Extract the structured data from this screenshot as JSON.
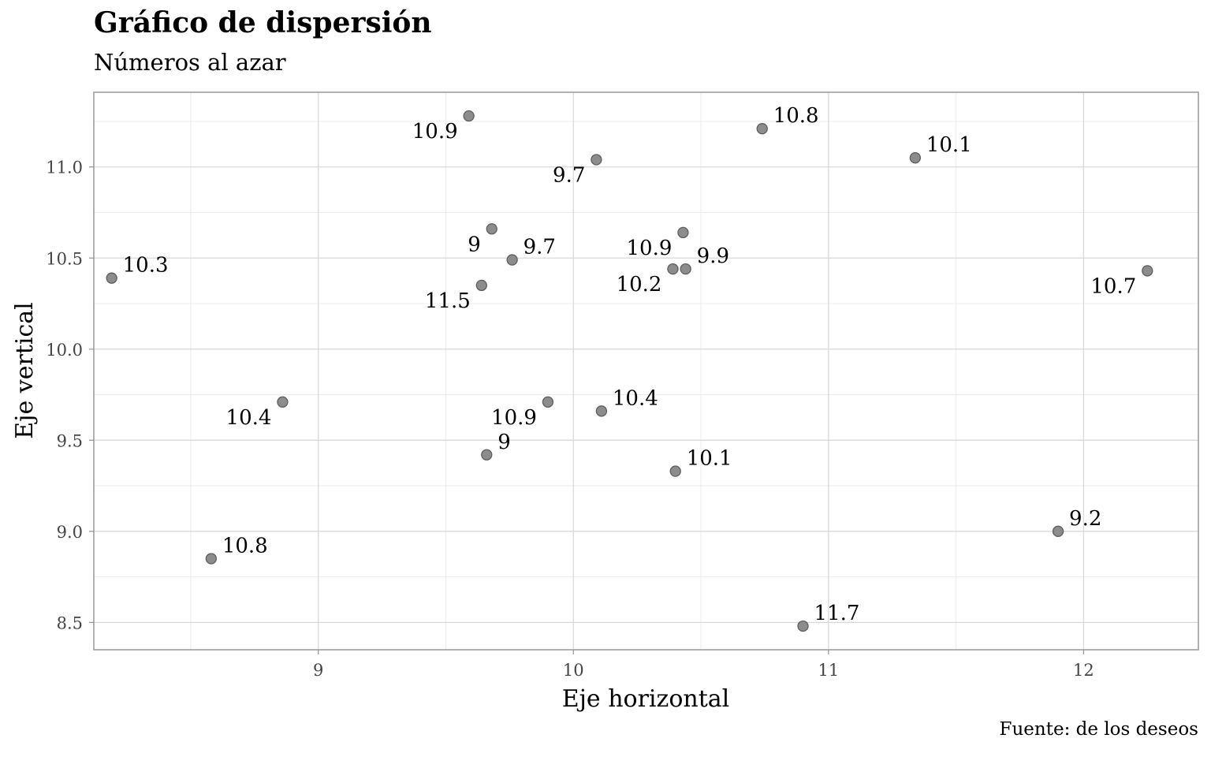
{
  "chart_data": {
    "type": "scatter",
    "title": "Gráfico de dispersión",
    "subtitle": "Números al azar",
    "caption": "Fuente: de los deseos",
    "xlabel": "Eje horizontal",
    "ylabel": "Eje vertical",
    "xlim": [
      8.12,
      12.45
    ],
    "ylim": [
      8.35,
      11.41
    ],
    "x_ticks": [
      9,
      10,
      11,
      12
    ],
    "y_ticks": [
      8.5,
      9.0,
      9.5,
      10.0,
      10.5,
      11.0
    ],
    "x_tick_labels": [
      "9",
      "10",
      "11",
      "12"
    ],
    "y_tick_labels": [
      "8.5",
      "9.0",
      "9.5",
      "10.0",
      "10.5",
      "11.0"
    ],
    "grid": true,
    "point_color": "#8c8c8c",
    "points": [
      {
        "x": 8.19,
        "y": 10.39,
        "label": "10.3",
        "side": "right"
      },
      {
        "x": 8.86,
        "y": 9.71,
        "label": "10.4",
        "side": "left"
      },
      {
        "x": 8.58,
        "y": 8.85,
        "label": "10.8",
        "side": "right"
      },
      {
        "x": 9.59,
        "y": 11.28,
        "label": "10.9",
        "side": "left"
      },
      {
        "x": 10.09,
        "y": 11.04,
        "label": "9.7",
        "side": "left"
      },
      {
        "x": 10.74,
        "y": 11.21,
        "label": "10.8",
        "side": "right"
      },
      {
        "x": 11.34,
        "y": 11.05,
        "label": "10.1",
        "side": "right"
      },
      {
        "x": 9.68,
        "y": 10.66,
        "label": "9",
        "side": "left"
      },
      {
        "x": 9.76,
        "y": 10.49,
        "label": "9.7",
        "side": "right"
      },
      {
        "x": 9.64,
        "y": 10.35,
        "label": "11.5",
        "side": "left"
      },
      {
        "x": 10.43,
        "y": 10.64,
        "label": "10.9",
        "side": "left"
      },
      {
        "x": 10.44,
        "y": 10.44,
        "label": "9.9",
        "side": "right"
      },
      {
        "x": 10.39,
        "y": 10.44,
        "label": "10.2",
        "side": "left"
      },
      {
        "x": 12.25,
        "y": 10.43,
        "label": "10.7",
        "side": "left"
      },
      {
        "x": 9.9,
        "y": 9.71,
        "label": "10.9",
        "side": "left"
      },
      {
        "x": 10.11,
        "y": 9.66,
        "label": "10.4",
        "side": "right"
      },
      {
        "x": 9.66,
        "y": 9.42,
        "label": "9",
        "side": "right"
      },
      {
        "x": 10.4,
        "y": 9.33,
        "label": "10.1",
        "side": "right"
      },
      {
        "x": 11.9,
        "y": 9.0,
        "label": "9.2",
        "side": "right"
      },
      {
        "x": 10.9,
        "y": 8.48,
        "label": "11.7",
        "side": "right"
      }
    ]
  }
}
